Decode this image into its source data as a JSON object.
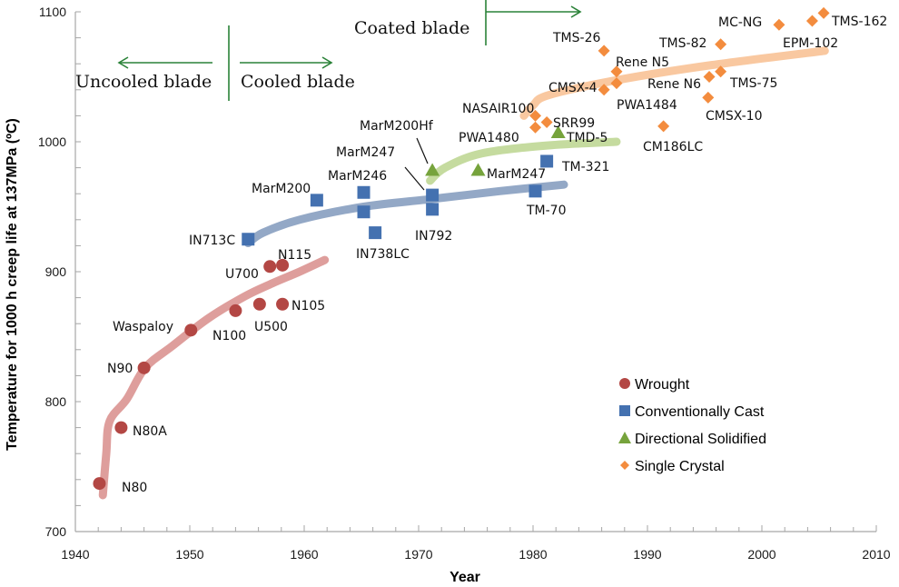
{
  "chart_data": {
    "type": "scatter",
    "title": "",
    "xlabel": "Year",
    "ylabel": "Temperature for 1000 h creep life at 137MPa (ºC)",
    "xlim": [
      1940,
      2010
    ],
    "ylim": [
      700,
      1100
    ],
    "x_ticks": [
      "1940",
      "1950",
      "1960",
      "1970",
      "1980",
      "1990",
      "2000",
      "2010"
    ],
    "y_ticks": [
      "700",
      "800",
      "900",
      "1000",
      "1100"
    ],
    "x_minor_step": 2,
    "y_minor_step": 20,
    "grid": false,
    "legend_position": "bottom-right",
    "series": [
      {
        "name": "Wrought",
        "marker": "circle",
        "color": "#B34744",
        "trend_color": "#DE9E9C",
        "points": [
          {
            "label": "N80",
            "x": 1942.1,
            "y": 737
          },
          {
            "label": "N80A",
            "x": 1944.0,
            "y": 780
          },
          {
            "label": "N90",
            "x": 1946.0,
            "y": 826
          },
          {
            "label": "Waspaloy",
            "x": 1950.1,
            "y": 855
          },
          {
            "label": "N100",
            "x": 1954.0,
            "y": 870
          },
          {
            "label": "U500",
            "x": 1956.1,
            "y": 875
          },
          {
            "label": "N105",
            "x": 1958.1,
            "y": 875
          },
          {
            "label": "U700",
            "x": 1957.0,
            "y": 904
          },
          {
            "label": "N115",
            "x": 1958.1,
            "y": 905
          }
        ],
        "trend": [
          [
            1942.4,
            728
          ],
          [
            1942.7,
            760
          ],
          [
            1943.0,
            785
          ],
          [
            1944.5,
            802
          ],
          [
            1946.1,
            826
          ],
          [
            1948.5,
            843
          ],
          [
            1951.6,
            864
          ],
          [
            1954.8,
            881
          ],
          [
            1957.2,
            891
          ],
          [
            1959.6,
            900
          ],
          [
            1961.8,
            909
          ]
        ]
      },
      {
        "name": "Conventionally Cast",
        "marker": "square",
        "color": "#4471B0",
        "trend_color": "#93A8C6",
        "points": [
          {
            "label": "IN713C",
            "x": 1955.1,
            "y": 925
          },
          {
            "label": "MarM200",
            "x": 1961.1,
            "y": 955
          },
          {
            "label": "MarM246",
            "x": 1965.2,
            "y": 961
          },
          {
            "label": "",
            "x": 1965.2,
            "y": 946
          },
          {
            "label": "IN738LC",
            "x": 1966.2,
            "y": 930
          },
          {
            "label": "IN792",
            "x": 1971.2,
            "y": 948
          },
          {
            "label": "MarM247",
            "x": 1971.2,
            "y": 959
          },
          {
            "label": "TM-70",
            "x": 1980.2,
            "y": 962
          },
          {
            "label": "TM-321",
            "x": 1981.2,
            "y": 985
          }
        ],
        "trend": [
          [
            1955.1,
            922
          ],
          [
            1956.4,
            930
          ],
          [
            1959.6,
            940
          ],
          [
            1965.2,
            950
          ],
          [
            1971.2,
            956
          ],
          [
            1977.1,
            962
          ],
          [
            1982.7,
            967
          ]
        ]
      },
      {
        "name": "Directional Solidified",
        "marker": "triangle",
        "color": "#76A33C",
        "trend_color": "#C5DB9F",
        "points": [
          {
            "label": "MarM200Hf",
            "x": 1971.2,
            "y": 978
          },
          {
            "label": "MarM247",
            "x": 1975.2,
            "y": 978
          },
          {
            "label": "TMD-5",
            "x": 1982.2,
            "y": 1007
          }
        ],
        "trend": [
          [
            1971.0,
            970
          ],
          [
            1972.3,
            980
          ],
          [
            1975.5,
            991
          ],
          [
            1981.1,
            997
          ],
          [
            1987.3,
            1000
          ]
        ]
      },
      {
        "name": "Single Crystal",
        "marker": "diamond",
        "color": "#F38C3E",
        "trend_color": "#F9C8A0",
        "points": [
          {
            "label": "NASAIR100",
            "x": 1980.2,
            "y": 1020
          },
          {
            "label": "PWA1480",
            "x": 1980.2,
            "y": 1011
          },
          {
            "label": "SRR99",
            "x": 1981.2,
            "y": 1015
          },
          {
            "label": "TMS-26",
            "x": 1986.2,
            "y": 1070
          },
          {
            "label": "Rene N5",
            "x": 1987.3,
            "y": 1054
          },
          {
            "label": "CMSX-4",
            "x": 1986.2,
            "y": 1040
          },
          {
            "label": "PWA1484",
            "x": 1987.3,
            "y": 1045
          },
          {
            "label": "CM186LC",
            "x": 1991.4,
            "y": 1012
          },
          {
            "label": "Rene N6",
            "x": 1995.4,
            "y": 1050
          },
          {
            "label": "TMS-75",
            "x": 1996.4,
            "y": 1054
          },
          {
            "label": "CMSX-10",
            "x": 1995.3,
            "y": 1034
          },
          {
            "label": "TMS-82",
            "x": 1996.4,
            "y": 1075
          },
          {
            "label": "MC-NG",
            "x": 2001.5,
            "y": 1090
          },
          {
            "label": "EPM-102",
            "x": 2004.4,
            "y": 1093
          },
          {
            "label": "TMS-162",
            "x": 2005.4,
            "y": 1099
          }
        ],
        "trend": [
          [
            1979.2,
            1020
          ],
          [
            1980.0,
            1028
          ],
          [
            1981.4,
            1036
          ],
          [
            1987.7,
            1048
          ],
          [
            1995.6,
            1059
          ],
          [
            2005.5,
            1070
          ]
        ]
      }
    ],
    "annotations": [
      {
        "text": "Uncooled blade",
        "arrow": "left",
        "boundary_year": 1953.5
      },
      {
        "text": "Cooled blade",
        "arrow": "right",
        "boundary_year": 1953.5
      },
      {
        "text": "Coated blade",
        "arrow": "right",
        "boundary_year": 1976
      }
    ],
    "annotation_color": "#2A8238"
  }
}
